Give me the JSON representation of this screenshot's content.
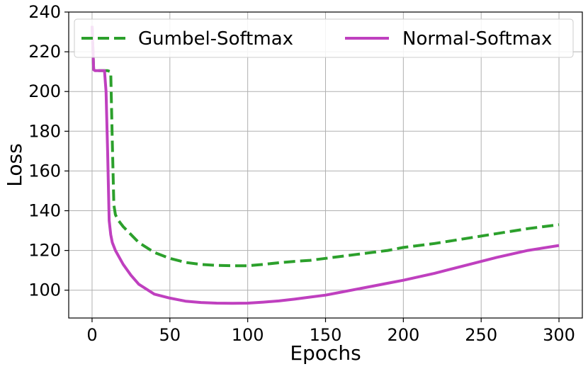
{
  "chart_data": {
    "type": "line",
    "title": "",
    "xlabel": "Epochs",
    "ylabel": "Loss",
    "xlim": [
      -15,
      315
    ],
    "ylim": [
      86,
      240
    ],
    "xticks": [
      0,
      50,
      100,
      150,
      200,
      250,
      300
    ],
    "yticks": [
      100,
      120,
      140,
      160,
      180,
      200,
      220,
      240
    ],
    "grid": true,
    "legend": {
      "position": "top",
      "columns": 2
    },
    "series": [
      {
        "name": "Gumbel-Softmax",
        "color": "#2ca02c",
        "style": "dashed",
        "x": [
          0,
          1,
          2,
          5,
          8,
          10,
          12,
          13,
          14,
          15,
          17,
          20,
          25,
          30,
          40,
          50,
          60,
          70,
          80,
          90,
          100,
          110,
          120,
          130,
          140,
          150,
          160,
          170,
          180,
          190,
          200,
          220,
          240,
          260,
          280,
          300
        ],
        "y": [
          233,
          211,
          210.5,
          210.5,
          210.5,
          210.5,
          210,
          175,
          143,
          138,
          135,
          132,
          128,
          124,
          119,
          116,
          114,
          113,
          112.5,
          112.3,
          112.3,
          113,
          113.8,
          114.5,
          115,
          116,
          117,
          118,
          119,
          120,
          121.5,
          123.5,
          126,
          128.5,
          131,
          133
        ]
      },
      {
        "name": "Normal-Softmax",
        "color": "#bf40bf",
        "style": "solid",
        "x": [
          0,
          1,
          2,
          5,
          8,
          9,
          10,
          11,
          12,
          13,
          15,
          20,
          25,
          30,
          40,
          50,
          60,
          70,
          80,
          90,
          100,
          110,
          120,
          130,
          140,
          150,
          160,
          170,
          180,
          190,
          200,
          220,
          240,
          260,
          280,
          300
        ],
        "y": [
          233,
          211,
          210.5,
          210.5,
          210.5,
          200,
          170,
          135,
          128,
          124,
          120,
          113,
          107.5,
          103,
          98,
          96,
          94.5,
          93.8,
          93.5,
          93.4,
          93.5,
          94,
          94.6,
          95.5,
          96.5,
          97.5,
          99,
          100.5,
          102,
          103.5,
          105,
          108.5,
          112.5,
          116.5,
          120,
          122.5
        ]
      }
    ]
  }
}
